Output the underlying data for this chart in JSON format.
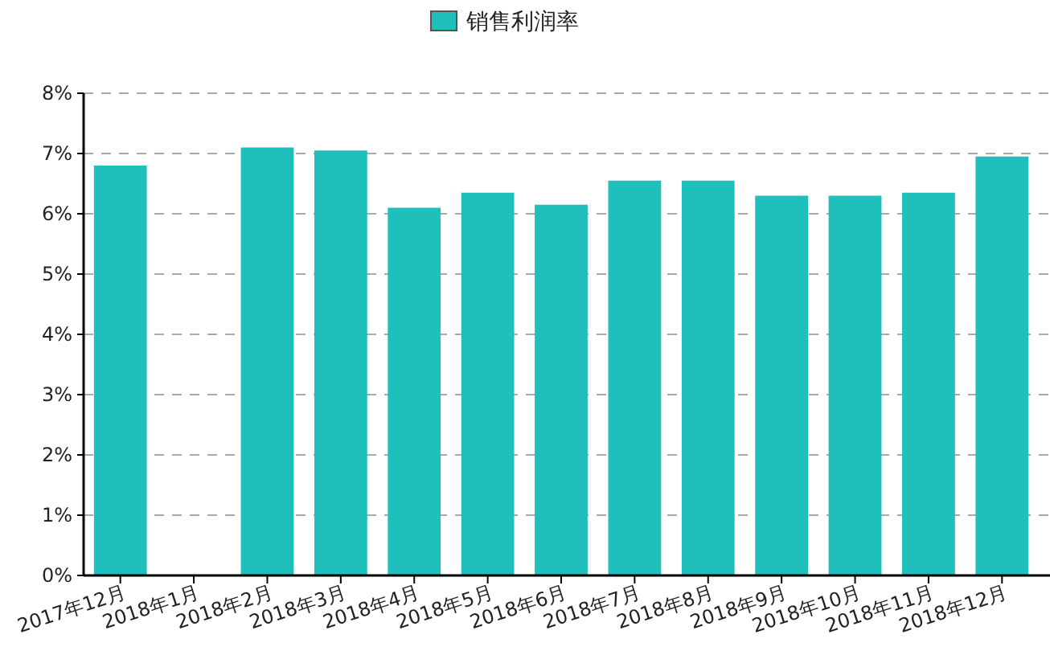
{
  "chart_data": {
    "type": "bar",
    "categories": [
      "2017年12月",
      "2018年1月",
      "2018年2月",
      "2018年3月",
      "2018年4月",
      "2018年5月",
      "2018年6月",
      "2018年7月",
      "2018年8月",
      "2018年9月",
      "2018年10月",
      "2018年11月",
      "2018年12月"
    ],
    "series": [
      {
        "name": "销售利润率",
        "color": "#1fbfbb",
        "values": [
          6.8,
          null,
          7.1,
          7.05,
          6.1,
          6.35,
          6.15,
          6.55,
          6.55,
          6.3,
          6.3,
          6.35,
          6.95
        ]
      }
    ],
    "ylim": [
      0,
      8
    ],
    "yticks": [
      {
        "value": 0,
        "label": "0%"
      },
      {
        "value": 1,
        "label": "1%"
      },
      {
        "value": 2,
        "label": "2%"
      },
      {
        "value": 3,
        "label": "3%"
      },
      {
        "value": 4,
        "label": "4%"
      },
      {
        "value": 5,
        "label": "5%"
      },
      {
        "value": 6,
        "label": "6%"
      },
      {
        "value": 7,
        "label": "7%"
      },
      {
        "value": 8,
        "label": "8%"
      }
    ],
    "grid": "y",
    "legend": "top"
  }
}
